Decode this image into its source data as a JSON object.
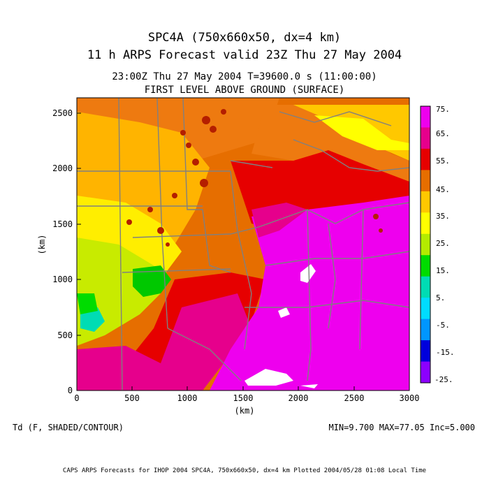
{
  "titles": {
    "line1": "SPC4A (750x660x50, dx=4 km)",
    "line2": "11 h ARPS Forecast valid 23Z Thu 27 May 2004",
    "line3": "23:00Z Thu 27 May 2004      T=39600.0 s (11:00:00)",
    "line4": "FIRST LEVEL ABOVE GROUND (SURFACE)"
  },
  "axes": {
    "x_label": "(km)",
    "y_label": "(km)",
    "x_ticks": [
      "0",
      "500",
      "1000",
      "1500",
      "2000",
      "2500",
      "3000"
    ],
    "y_ticks": [
      "0",
      "500",
      "1000",
      "1500",
      "2000",
      "2500"
    ],
    "x_range": [
      0,
      3000
    ],
    "y_range": [
      0,
      2640
    ]
  },
  "colorbar": {
    "labels": [
      "75.",
      "65.",
      "55.",
      "45.",
      "35.",
      "25.",
      "15.",
      "5.",
      "-5.",
      "-15.",
      "-25."
    ],
    "colors": [
      "#ee00ee",
      "#e6008c",
      "#e60000",
      "#e66e00",
      "#ffc800",
      "#ffff00",
      "#b4eb00",
      "#00dc00",
      "#00dcb4",
      "#00dcff",
      "#0096ff",
      "#0000dc",
      "#8c00ff"
    ]
  },
  "variable_label": "Td (F, SHADED/CONTOUR)",
  "stats": "MIN=9.700 MAX=77.05 Inc=5.000",
  "footer": "CAPS ARPS Forecasts for IHOP 2004  SPC4A, 750x660x50, dx=4 km  Plotted 2004/05/28 01:08 Local Time"
}
